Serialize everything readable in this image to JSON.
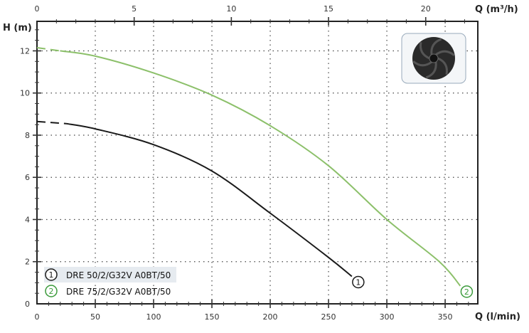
{
  "chart_data": {
    "type": "line",
    "ylabel": "H (m)",
    "xlabel": "Q (l/min)",
    "x2label": "Q (m³/h)",
    "xlim": [
      0,
      378
    ],
    "ylim": [
      0,
      13.4
    ],
    "x2lim": [
      0,
      22.68
    ],
    "xticks": [
      0,
      50,
      100,
      150,
      200,
      250,
      300,
      350
    ],
    "yticks": [
      0,
      2,
      4,
      6,
      8,
      10,
      12
    ],
    "x2ticks": [
      0,
      5,
      10,
      15,
      20
    ],
    "grid": true,
    "legend_position": "bottom-left",
    "series": [
      {
        "name": "DRE 50/2/G32V A0BT/50",
        "marker": "1",
        "color": "#1a1a1a",
        "dashed_until": 25,
        "x": [
          0,
          25,
          50,
          100,
          150,
          200,
          250,
          270
        ],
        "y": [
          8.65,
          8.55,
          8.3,
          7.55,
          6.3,
          4.3,
          2.2,
          1.3
        ]
      },
      {
        "name": "DRE 75/2/G32V A0BT/50",
        "marker": "2",
        "color": "#8cc06a",
        "marker_color": "#3a9a3a",
        "dashed_until": 20,
        "x": [
          0,
          20,
          50,
          100,
          150,
          200,
          250,
          300,
          345,
          363
        ],
        "y": [
          12.15,
          12.0,
          11.75,
          10.95,
          9.9,
          8.45,
          6.55,
          4.0,
          2.0,
          0.85
        ]
      }
    ]
  },
  "image": {
    "subject": "impeller-icon"
  }
}
